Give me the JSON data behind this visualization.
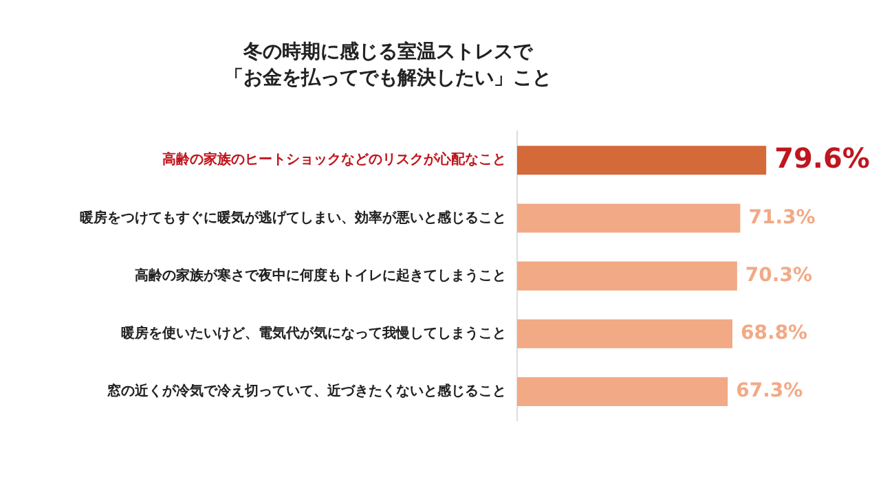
{
  "chart_data": {
    "type": "bar",
    "orientation": "horizontal",
    "title": "冬の時期に感じる室温ストレスで",
    "subtitle": "「お金を払ってでも解決したい」こと",
    "categories": [
      "高齢の家族のヒートショックなどのリスクが心配なこと",
      "暖房をつけてもすぐに暖気が逃げてしまい、効率が悪いと感じること",
      "高齢の家族が寒さで夜中に何度もトイレに起きてしまうこと",
      "暖房を使いたいけど、電気代が気になって我慢してしまうこと",
      "窓の近くが冷気で冷え切っていて、近づきたくないと感じること"
    ],
    "values": [
      79.6,
      71.3,
      70.3,
      68.8,
      67.3
    ],
    "value_labels": [
      "79.6%",
      "71.3%",
      "70.3%",
      "68.8%",
      "67.3%"
    ],
    "colors": [
      "#d4693a",
      "#f2a985",
      "#f2a985",
      "#f2a985",
      "#f2a985"
    ],
    "tick_labels": "y"
  }
}
